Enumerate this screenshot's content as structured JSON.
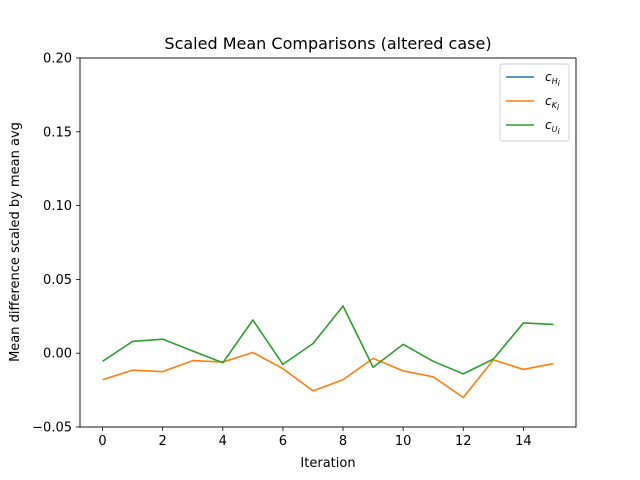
{
  "chart_data": {
    "type": "line",
    "title": "Scaled Mean Comparisons (altered case)",
    "xlabel": "Iteration",
    "ylabel": "Mean difference scaled by mean avg",
    "xlim": [
      -0.75,
      15.75
    ],
    "ylim": [
      -0.05,
      0.2
    ],
    "xticks": [
      0,
      2,
      4,
      6,
      8,
      10,
      12,
      14
    ],
    "xtick_labels": [
      "0",
      "2",
      "4",
      "6",
      "8",
      "10",
      "12",
      "14"
    ],
    "yticks": [
      -0.05,
      0.0,
      0.05,
      0.1,
      0.15,
      0.2
    ],
    "ytick_labels": [
      "−0.05",
      "0.00",
      "0.05",
      "0.10",
      "0.15",
      "0.20"
    ],
    "legend_position": "top-right",
    "x": [
      0,
      1,
      2,
      3,
      4,
      5,
      6,
      7,
      8,
      9,
      10,
      11,
      12,
      13,
      14,
      15
    ],
    "series": [
      {
        "name": "c_{H_i}",
        "label_main": "c",
        "label_sub": "H",
        "label_subsub": "i",
        "color": "#1f77b4",
        "values": [
          null,
          null,
          null,
          null,
          null,
          null,
          null,
          null,
          null,
          null,
          null,
          null,
          null,
          null,
          null,
          null
        ]
      },
      {
        "name": "c_{K_i}",
        "label_main": "c",
        "label_sub": "K",
        "label_subsub": "i",
        "color": "#ff7f0e",
        "values": [
          -0.018,
          -0.0115,
          -0.0125,
          -0.005,
          -0.006,
          0.0005,
          -0.0105,
          -0.0255,
          -0.018,
          -0.0035,
          -0.012,
          -0.016,
          -0.03,
          -0.0045,
          -0.011,
          -0.007
        ]
      },
      {
        "name": "c_{U_i}",
        "label_main": "c",
        "label_sub": "U",
        "label_subsub": "i",
        "color": "#2ca02c",
        "values": [
          -0.0055,
          0.008,
          0.0095,
          0.0015,
          -0.0065,
          0.0225,
          -0.0075,
          0.0065,
          0.032,
          -0.0095,
          0.006,
          -0.0055,
          -0.014,
          -0.004,
          0.0205,
          0.0195
        ]
      }
    ]
  }
}
